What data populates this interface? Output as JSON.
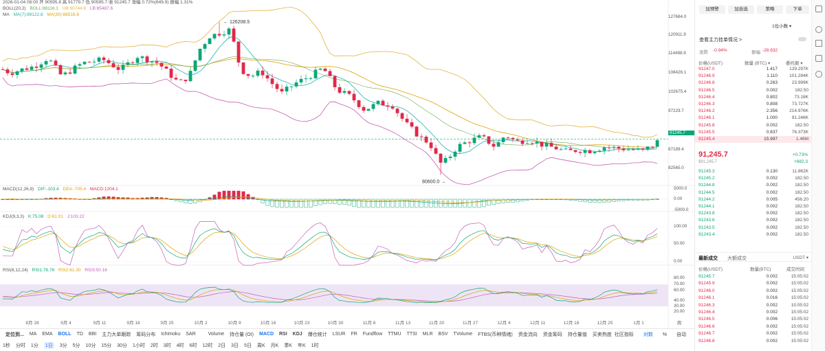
{
  "header": {
    "date_line": "2026-01-04 08:00  开 90595.8  高 91779.7  低 90595.7  收 91245.7  涨幅 0.72%(649.9)  振幅 1.31%",
    "boll_line": [
      "BOLL(20,2)",
      "BOLL:88116.1",
      "UB:90744.6",
      "LB:85487.6"
    ],
    "ma_line": [
      "MA",
      "MA(7):89122.8",
      "MA(30):88516.6"
    ]
  },
  "price_axis": [
    "127684.0",
    "120911.9",
    "114498.9",
    "108426.1",
    "102675.4",
    "97229.7",
    "91245.7",
    "87189.4",
    "82565.0"
  ],
  "current_price_tag": "91245.7",
  "annotations": {
    "high": "126208.5",
    "low": "80600.0"
  },
  "macd": {
    "title": "MACD(12,26,9)",
    "dif": "DIF:-103.4",
    "dea": "DEA:-705.4",
    "macd": "MACD:1204.1",
    "axis": [
      "5000.0",
      "0.00",
      "-5000.0"
    ]
  },
  "kdj": {
    "title": "KDJ(9,3,3)",
    "k": "K:75.08",
    "d": "D:61.01",
    "j": "J:103.22",
    "axis": [
      "100.00",
      "50.00",
      "0.00"
    ]
  },
  "rsi": {
    "title": "RSI(6,12,24)",
    "r1": "RSI1:76.76",
    "r2": "RSI2:61.30",
    "r3": "RSI3:50.16",
    "axis": [
      "80.00",
      "70.00",
      "60.00",
      "40.00",
      "30.00",
      "20.00"
    ]
  },
  "dates": [
    "8月 28",
    "9月 4",
    "9月 11",
    "9月 18",
    "9月 25",
    "10月 2",
    "10月 9",
    "10月 16",
    "10月 23",
    "10月 30",
    "11月 6",
    "11月 13",
    "11月 20",
    "11月 27",
    "12月 4",
    "12月 11",
    "12月 18",
    "12月 25",
    "1月 1"
  ],
  "date_extra": "周",
  "toolbar_indicators": [
    "定位到...",
    "MA",
    "EMA",
    "BOLL",
    "TD",
    "BBI",
    "主力大单跟踪",
    "筹码分布",
    "Ichimoku",
    "SAR",
    "Volume",
    "持仓量 (OI)",
    "MACD",
    "RSI",
    "KDJ",
    "爆仓统计",
    "LSUR",
    "FR",
    "Fundflow",
    "TTMU",
    "TTSI",
    "MLR",
    "BSV",
    "TVolume",
    "FTBS(币种情绪)",
    "资金流向",
    "资金筹码",
    "持仓量值",
    "买卖热度"
  ],
  "toolbar_right": [
    "社区指标",
    "对数",
    "%",
    "自动"
  ],
  "timeframes": [
    "1秒",
    "分时",
    "1分",
    "1日",
    "3分",
    "5分",
    "10分",
    "15分",
    "30分",
    "1小时",
    "2时",
    "3时",
    "4时",
    "6时",
    "12时",
    "2日",
    "3日",
    "5日",
    "周K",
    "月K",
    "季K",
    "年K",
    "1时"
  ],
  "sidebar": {
    "buttons": [
      "加预警",
      "加自选",
      "策略",
      "下单"
    ],
    "precision": "1位小数",
    "check_label": "查看主力挂单情况 >",
    "change_label": "涨跌",
    "change_value": "-0.94%",
    "range_label": "振幅",
    "range_value": "-28.832",
    "headers": [
      "价格(USDT)",
      "数量 (BTC)",
      "委托额"
    ],
    "asks": [
      [
        "91247.0",
        "1.417",
        "129.297K"
      ],
      [
        "91246.9",
        "1.110",
        "101.284K"
      ],
      [
        "91246.8",
        "0.263",
        "23.999K"
      ],
      [
        "91246.5",
        "0.002",
        "182.50"
      ],
      [
        "91246.4",
        "0.802",
        "73.18K"
      ],
      [
        "91246.3",
        "0.808",
        "73.727K"
      ],
      [
        "91246.2",
        "2.356",
        "214.976K"
      ],
      [
        "91246.1",
        "1.000",
        "91.246K"
      ],
      [
        "91245.8",
        "0.002",
        "182.50"
      ],
      [
        "91245.5",
        "0.837",
        "76.373K"
      ],
      [
        "91245.4",
        "15.997",
        "1.46M"
      ]
    ],
    "mid_price": "91,245.7",
    "mid_sub": "$91,245.7",
    "mid_change": "+0.73%",
    "mid_change2": "+682.3",
    "bids": [
      [
        "91245.3",
        "0.130",
        "11.862K"
      ],
      [
        "91245.2",
        "0.002",
        "182.50"
      ],
      [
        "91244.8",
        "0.002",
        "182.50"
      ],
      [
        "91244.5",
        "0.002",
        "182.50"
      ],
      [
        "91244.2",
        "0.005",
        "456.20"
      ],
      [
        "91244.1",
        "0.002",
        "182.50"
      ],
      [
        "91243.8",
        "0.002",
        "182.50"
      ],
      [
        "91243.6",
        "0.002",
        "182.50"
      ],
      [
        "91243.5",
        "0.002",
        "182.50"
      ],
      [
        "91243.4",
        "0.002",
        "182.50"
      ]
    ],
    "trades_tabs": [
      "最新成交",
      "大额成交"
    ],
    "trades_filter": "USDT",
    "trade_headers": [
      "价格(USDT)",
      "数量(BTC)",
      "成交时间"
    ],
    "trades": [
      [
        "91245.7",
        "0.002",
        "15:05:02",
        "g"
      ],
      [
        "91245.9",
        "0.002",
        "15:05:02",
        "r"
      ],
      [
        "91246.0",
        "0.002",
        "15:05:02",
        "r"
      ],
      [
        "91246.1",
        "0.016",
        "15:05:02",
        "r"
      ],
      [
        "91246.3",
        "0.002",
        "15:05:02",
        "r"
      ],
      [
        "91246.4",
        "0.002",
        "15:05:02",
        "r"
      ],
      [
        "91246.5",
        "0.006",
        "15:05:02",
        "r"
      ],
      [
        "91246.6",
        "0.002",
        "15:05:02",
        "r"
      ],
      [
        "91246.7",
        "0.002",
        "15:05:02",
        "r"
      ],
      [
        "91246.8",
        "0.002",
        "15:05:02",
        "r"
      ]
    ]
  },
  "colors": {
    "up": "#0ca678",
    "down": "#e0294a",
    "ma7": "#20b2aa",
    "ma30": "#e0a100",
    "boll_upper": "#e3b23c",
    "boll_lower": "#c45db5",
    "rsi_band": "#e7dcf1"
  }
}
